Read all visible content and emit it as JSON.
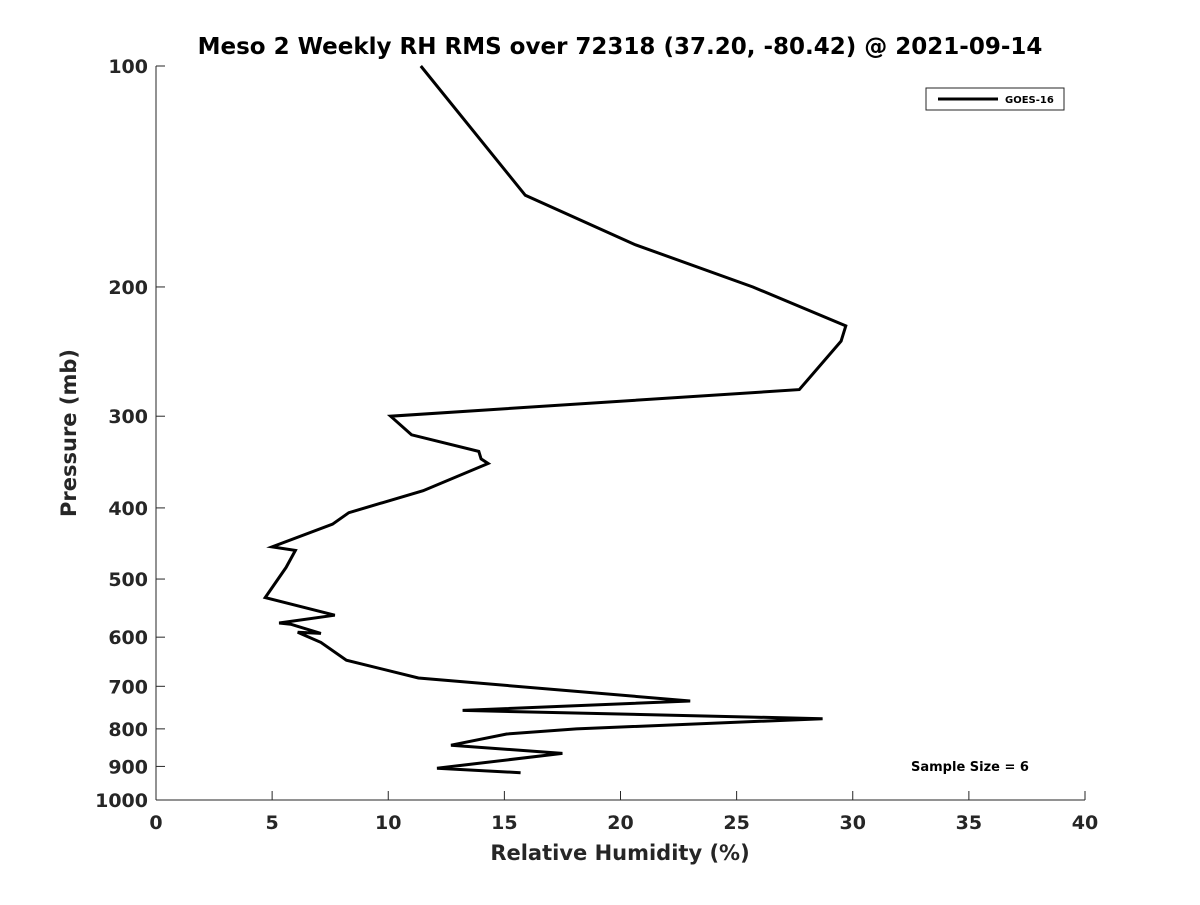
{
  "chart_data": {
    "type": "line",
    "title": "Meso 2 Weekly RH RMS over 72318 (37.20, -80.42) @ 2021-09-14",
    "xlabel": "Relative Humidity (%)",
    "ylabel": "Pressure (mb)",
    "xlim": [
      0,
      40
    ],
    "ylim": [
      1000,
      100
    ],
    "y_scale": "log",
    "y_reversed": true,
    "xticks": [
      0,
      5,
      10,
      15,
      20,
      25,
      30,
      35,
      40
    ],
    "yticks": [
      100,
      200,
      300,
      400,
      500,
      600,
      700,
      800,
      900,
      1000
    ],
    "grid": false,
    "legend_position": "top-right",
    "series": [
      {
        "name": "GOES-16",
        "color": "#000000",
        "x": [
          11.4,
          15.9,
          20.6,
          25.7,
          29.7,
          29.5,
          27.7,
          10.1,
          11.0,
          13.9,
          14.0,
          14.3,
          11.5,
          8.3,
          7.6,
          5.0,
          6.0,
          5.6,
          4.7,
          7.7,
          5.3,
          5.8,
          7.1,
          6.1,
          7.1,
          8.2,
          11.3,
          23.0,
          13.2,
          28.7,
          18.1,
          15.1,
          12.7,
          17.5,
          12.1,
          15.7
        ],
        "y": [
          100,
          150,
          175,
          200,
          226,
          237,
          276,
          300,
          318,
          335,
          343,
          348,
          379,
          406,
          421,
          452,
          457,
          482,
          530,
          560,
          574,
          576,
          593,
          591,
          610,
          645,
          682,
          733,
          755,
          775,
          800,
          813,
          842,
          864,
          905,
          918
        ]
      }
    ],
    "annotations": [
      "Sample Size = 6"
    ]
  }
}
